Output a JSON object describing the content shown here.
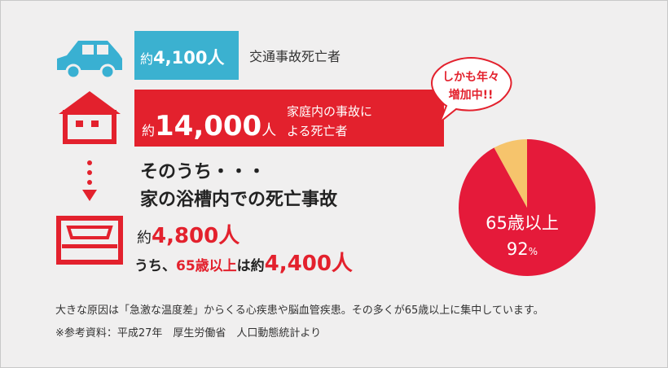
{
  "traffic": {
    "prefix": "約",
    "number": "4,100人",
    "label": "交通事故死亡者"
  },
  "home": {
    "prefix": "約",
    "number": "14,000",
    "suffix": "人",
    "label_lines": [
      "家庭内の事故に",
      "よる死亡者"
    ]
  },
  "bubble": {
    "lines": [
      "しかも年々",
      "増加中!!"
    ]
  },
  "bath": {
    "intro": "そのうち・・・",
    "title": "家の浴槽内での死亡事故",
    "total_prefix": "約",
    "total": "4,800人",
    "elderly_prefix": "うち、",
    "elderly_group": "65歳以上",
    "elderly_mid": "は約",
    "elderly_total": "4,400人"
  },
  "footer": {
    "note": "大きな原因は「急激な温度差」からくる心疾患や脳血管疾患。その多くが65歳以上に集中しています。",
    "source": "※参考資料：平成27年　厚生労働省　人口動態統計より"
  },
  "chart_data": {
    "type": "pie",
    "categories": [
      "65歳以上",
      null
    ],
    "values": [
      92,
      8
    ],
    "unit": "%",
    "colors": [
      "#e51a3a",
      "#f6c46c"
    ]
  }
}
